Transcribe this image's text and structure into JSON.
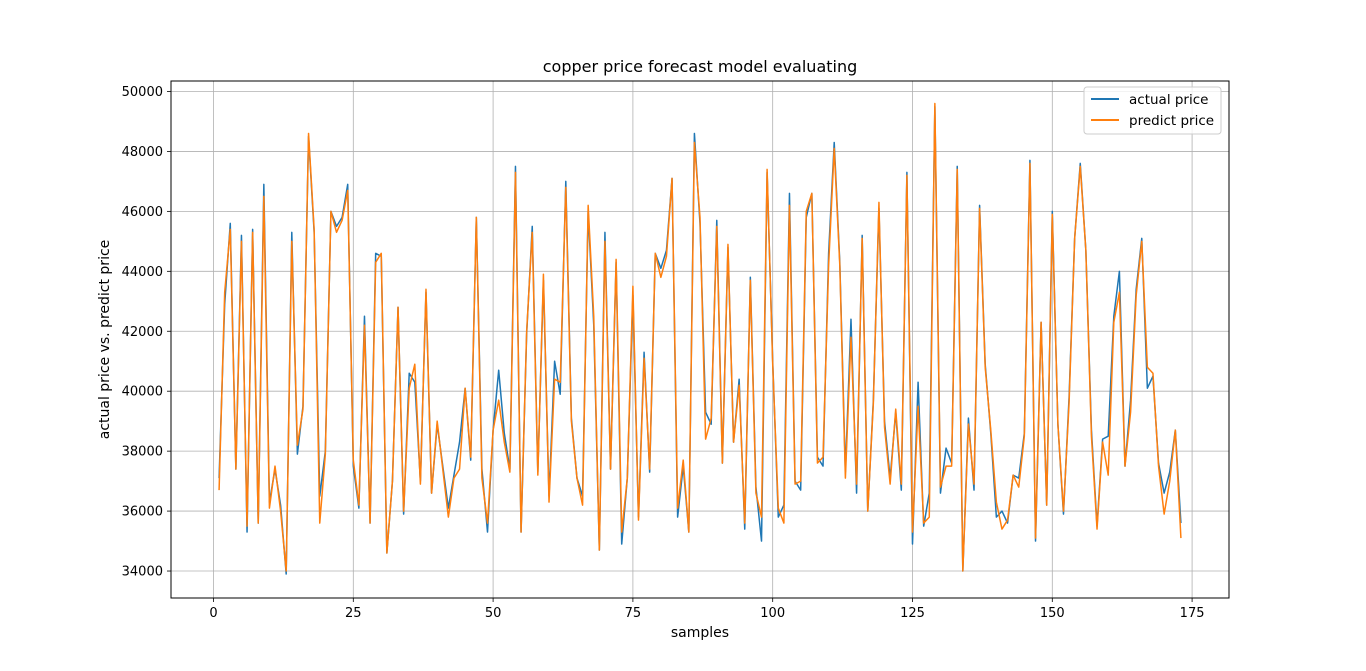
{
  "chart_data": {
    "type": "line",
    "title": "copper price forecast model evaluating",
    "xlabel": "samples",
    "ylabel": "actual price vs. predict price",
    "xlim": [
      -7.6,
      181.6
    ],
    "ylim": [
      33100,
      50350
    ],
    "xticks": [
      0,
      25,
      50,
      75,
      100,
      125,
      150,
      175
    ],
    "yticks": [
      34000,
      36000,
      38000,
      40000,
      42000,
      44000,
      46000,
      48000,
      50000
    ],
    "grid": true,
    "legend_position": "top-right",
    "x_start": 1,
    "series": [
      {
        "name": "actual price",
        "color": "#1f77b4",
        "values": [
          37100,
          42900,
          45600,
          37400,
          45200,
          35300,
          45400,
          35600,
          46900,
          36300,
          37400,
          36200,
          33900,
          45300,
          37900,
          39500,
          48500,
          45300,
          36500,
          38000,
          46000,
          45500,
          45800,
          46900,
          37500,
          36100,
          42500,
          35600,
          44600,
          44500,
          34600,
          37000,
          42800,
          35900,
          40600,
          40300,
          37000,
          43300,
          36600,
          38900,
          37500,
          36100,
          37200,
          38300,
          40100,
          37700,
          45800,
          37400,
          35300,
          38700,
          40700,
          38600,
          37400,
          47500,
          35300,
          41900,
          45500,
          37300,
          43700,
          36500,
          41000,
          39900,
          47000,
          39100,
          37100,
          36500,
          46000,
          42200,
          34700,
          45300,
          37400,
          44300,
          34900,
          37100,
          43200,
          35800,
          41300,
          37300,
          44600,
          44100,
          44700,
          47100,
          35800,
          37500,
          35300,
          48600,
          45600,
          39300,
          38900,
          45700,
          37600,
          44800,
          38300,
          40400,
          35400,
          43800,
          36800,
          35000,
          47300,
          41000,
          35800,
          36200,
          46600,
          37000,
          36700,
          45800,
          46600,
          37800,
          37500,
          44600,
          48300,
          44300,
          37300,
          42400,
          36600,
          45200,
          36000,
          39700,
          46100,
          39000,
          37100,
          39300,
          36700,
          47300,
          34900,
          40300,
          35500,
          36600,
          49500,
          36600,
          38100,
          37600,
          47500,
          34000,
          39100,
          36700,
          46200,
          40900,
          38600,
          35800,
          36000,
          35600,
          37200,
          37100,
          38600,
          47700,
          35000,
          42300,
          36200,
          46000,
          38900,
          35900,
          39800,
          45100,
          47600,
          44700,
          38700,
          35500,
          38400,
          38500,
          42500,
          44000,
          37500,
          39700,
          43400,
          45100,
          40100,
          40500,
          37600,
          36600,
          37300,
          38700,
          35600
        ]
      },
      {
        "name": "predict price",
        "color": "#ff7f0e",
        "values": [
          36700,
          43300,
          45400,
          37400,
          45000,
          35500,
          45300,
          35600,
          46500,
          36100,
          37500,
          36000,
          34000,
          45000,
          38200,
          39400,
          48600,
          45400,
          35600,
          37900,
          46000,
          45300,
          45700,
          46700,
          37700,
          36200,
          42200,
          35600,
          44300,
          44600,
          34600,
          37000,
          42800,
          36000,
          40100,
          40900,
          36900,
          43400,
          36600,
          39000,
          37400,
          35800,
          37100,
          37400,
          40100,
          37800,
          45800,
          37100,
          35600,
          38700,
          39700,
          38300,
          37300,
          47300,
          35300,
          42000,
          45300,
          37200,
          43900,
          36300,
          40400,
          40300,
          46800,
          39000,
          37100,
          36200,
          46200,
          42500,
          34700,
          45000,
          37400,
          44400,
          35300,
          37100,
          43500,
          35700,
          41100,
          37400,
          44600,
          43800,
          44500,
          47100,
          36100,
          37700,
          35300,
          48300,
          45800,
          38400,
          39100,
          45500,
          37600,
          44900,
          38300,
          40200,
          35600,
          43700,
          36600,
          35800,
          47400,
          40900,
          36100,
          35600,
          46200,
          36900,
          37000,
          46000,
          46600,
          37600,
          37800,
          44200,
          48100,
          44200,
          37100,
          41800,
          36900,
          45100,
          36000,
          39600,
          46300,
          38800,
          36900,
          39400,
          36900,
          47200,
          35300,
          39500,
          35600,
          35800,
          49600,
          36800,
          37500,
          37500,
          47400,
          34000,
          38900,
          36900,
          46100,
          40800,
          38700,
          36300,
          35400,
          35700,
          37200,
          36800,
          38500,
          47600,
          35100,
          42300,
          36200,
          45900,
          38900,
          36000,
          39600,
          45100,
          47500,
          44700,
          38500,
          35400,
          38300,
          37200,
          42300,
          43300,
          37500,
          39300,
          43200,
          45000,
          40800,
          40600,
          37500,
          35900,
          37000,
          38700,
          35100
        ]
      }
    ]
  }
}
